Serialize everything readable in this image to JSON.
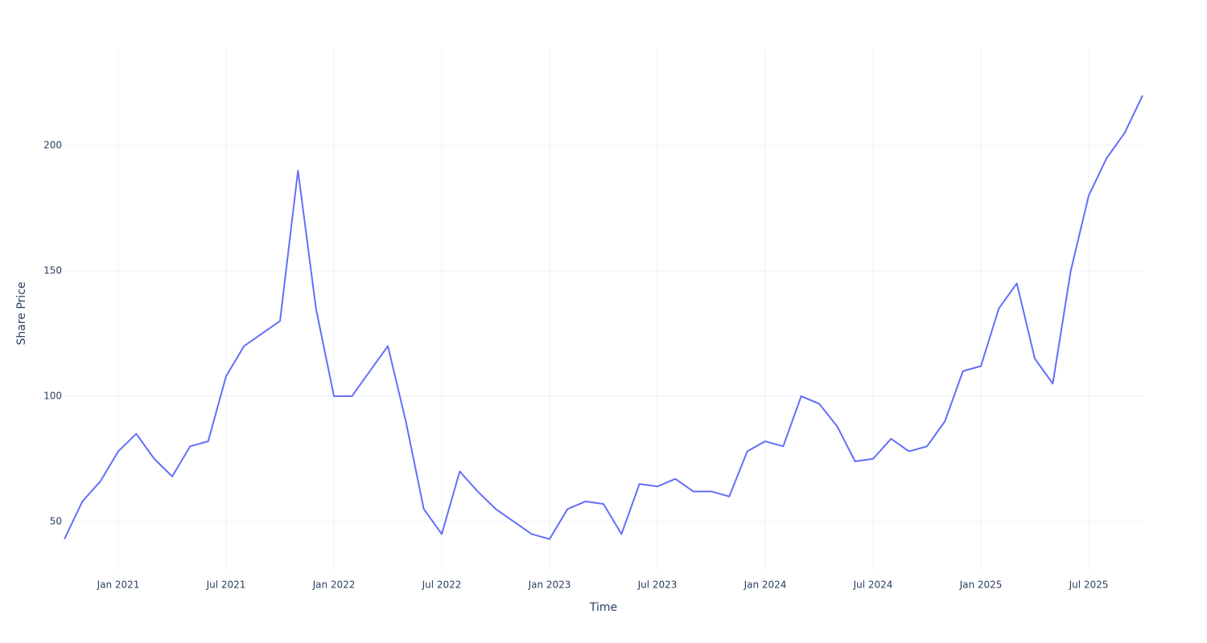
{
  "chart_data": {
    "type": "line",
    "x_label": "Time",
    "y_label": "Share Price",
    "x": [
      "2020-10",
      "2020-11",
      "2020-12",
      "2021-01",
      "2021-02",
      "2021-03",
      "2021-04",
      "2021-05",
      "2021-06",
      "2021-07",
      "2021-08",
      "2021-09",
      "2021-10",
      "2021-11",
      "2021-12",
      "2022-01",
      "2022-02",
      "2022-03",
      "2022-04",
      "2022-05",
      "2022-06",
      "2022-07",
      "2022-08",
      "2022-09",
      "2022-10",
      "2022-11",
      "2022-12",
      "2023-01",
      "2023-02",
      "2023-03",
      "2023-04",
      "2023-05",
      "2023-06",
      "2023-07",
      "2023-08",
      "2023-09",
      "2023-10",
      "2023-11",
      "2023-12",
      "2024-01",
      "2024-02",
      "2024-03",
      "2024-04",
      "2024-05",
      "2024-06",
      "2024-07",
      "2024-08",
      "2024-09",
      "2024-10",
      "2024-11",
      "2024-12",
      "2025-01",
      "2025-02",
      "2025-03",
      "2025-04",
      "2025-05",
      "2025-06",
      "2025-07",
      "2025-08",
      "2025-09",
      "2025-10"
    ],
    "series": [
      {
        "name": "Share Price",
        "color": "#636efa",
        "values": [
          43,
          58,
          66,
          78,
          85,
          75,
          68,
          80,
          82,
          108,
          120,
          125,
          130,
          190,
          135,
          100,
          100,
          110,
          120,
          90,
          55,
          45,
          70,
          62,
          55,
          50,
          45,
          43,
          55,
          58,
          57,
          45,
          65,
          64,
          67,
          62,
          62,
          60,
          78,
          82,
          80,
          100,
          97,
          88,
          74,
          75,
          83,
          78,
          80,
          90,
          110,
          112,
          135,
          145,
          115,
          105,
          150,
          180,
          195,
          205,
          220
        ]
      }
    ],
    "xlim": [
      "2020-10",
      "2025-10"
    ],
    "xticks": [
      {
        "value": "2021-01",
        "label": "Jan 2021"
      },
      {
        "value": "2021-07",
        "label": "Jul 2021"
      },
      {
        "value": "2022-01",
        "label": "Jan 2022"
      },
      {
        "value": "2022-07",
        "label": "Jul 2022"
      },
      {
        "value": "2023-01",
        "label": "Jan 2023"
      },
      {
        "value": "2023-07",
        "label": "Jul 2023"
      },
      {
        "value": "2024-01",
        "label": "Jan 2024"
      },
      {
        "value": "2024-07",
        "label": "Jul 2024"
      },
      {
        "value": "2025-01",
        "label": "Jan 2025"
      },
      {
        "value": "2025-07",
        "label": "Jul 2025"
      }
    ],
    "ylim": [
      30.4,
      238.8
    ],
    "yticks": [
      50,
      100,
      150,
      200
    ],
    "grid": true
  }
}
